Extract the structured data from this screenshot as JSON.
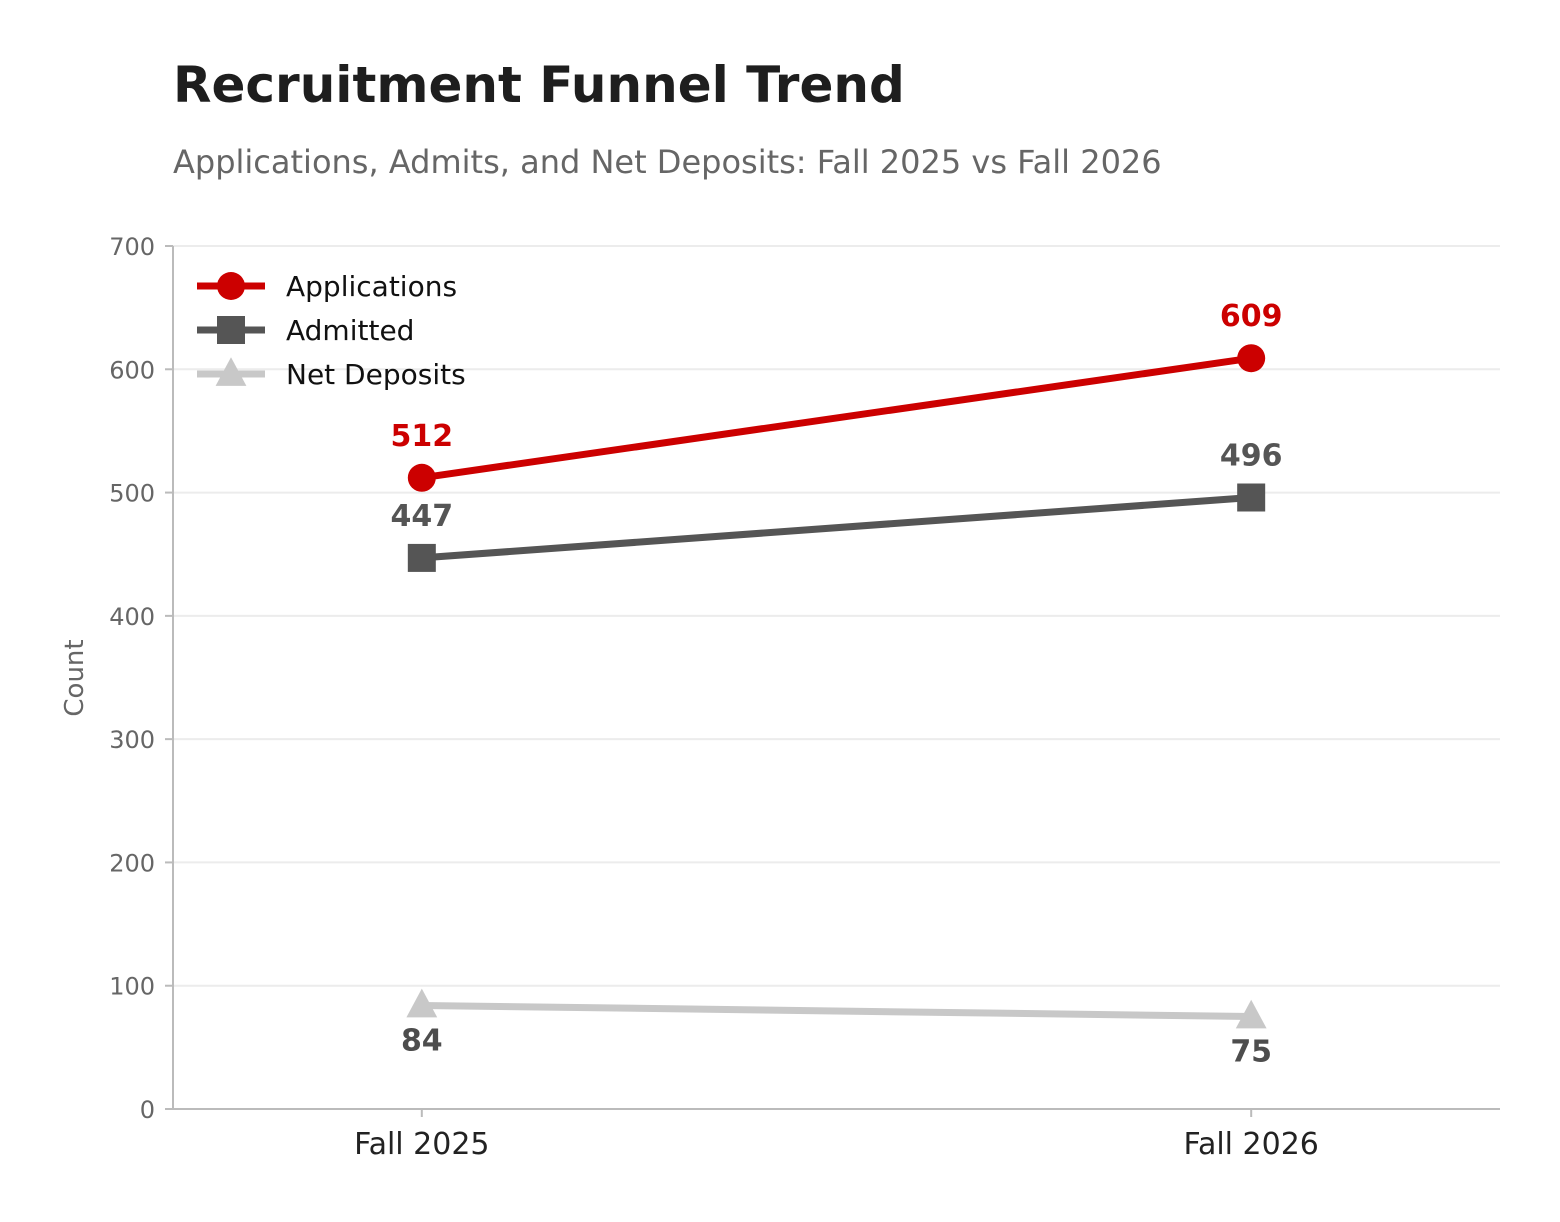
{
  "chart_data": {
    "type": "line",
    "title": "Recruitment Funnel Trend",
    "subtitle": "Applications, Admits, and Net Deposits: Fall 2025 vs Fall 2026",
    "xlabel": "",
    "ylabel": "Count",
    "categories": [
      "Fall 2025",
      "Fall 2026"
    ],
    "ylim": [
      0,
      700
    ],
    "yticks": [
      0,
      100,
      200,
      300,
      400,
      500,
      600,
      700
    ],
    "grid": "horizontal",
    "legend_position": "top-left",
    "series": [
      {
        "name": "Applications",
        "values": [
          512,
          609
        ],
        "color": "#cc0000",
        "marker": "circle",
        "label_position": "above"
      },
      {
        "name": "Admitted",
        "values": [
          447,
          496
        ],
        "color": "#555555",
        "marker": "square",
        "label_position": "above"
      },
      {
        "name": "Net Deposits",
        "values": [
          84,
          75
        ],
        "color": "#c8c8c8",
        "marker": "triangle",
        "label_position": "below",
        "label_color": "#4d4d4d"
      }
    ]
  }
}
